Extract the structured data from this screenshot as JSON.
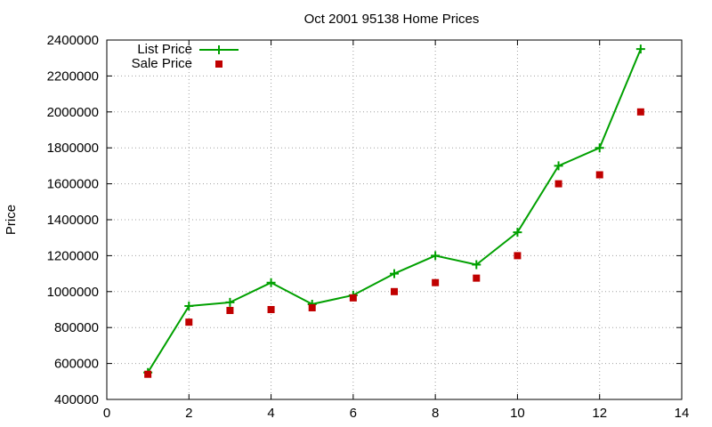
{
  "chart_data": {
    "type": "line",
    "title": "Oct 2001 95138 Home Prices",
    "xlabel": "",
    "ylabel": "Price",
    "xlim": [
      0,
      14
    ],
    "ylim": [
      400000,
      2400000
    ],
    "x_ticks": [
      0,
      2,
      4,
      6,
      8,
      10,
      12,
      14
    ],
    "y_ticks": [
      400000,
      600000,
      800000,
      1000000,
      1200000,
      1400000,
      1600000,
      1800000,
      2000000,
      2200000,
      2400000
    ],
    "x_tick_labels": [
      "0",
      "2",
      "4",
      "6",
      "8",
      "10",
      "12",
      "14"
    ],
    "y_tick_labels": [
      "400000",
      "600000",
      "800000",
      "1000000",
      "1200000",
      "1400000",
      "1600000",
      "1800000",
      "2000000",
      "2200000",
      "2400000"
    ],
    "grid": true,
    "legend_position": "top-left",
    "series": [
      {
        "name": "List Price",
        "style": "line-plus",
        "color": "#00a000",
        "x": [
          1,
          2,
          3,
          4,
          5,
          6,
          7,
          8,
          9,
          10,
          11,
          12,
          13
        ],
        "values": [
          550000,
          920000,
          940000,
          1050000,
          930000,
          980000,
          1100000,
          1200000,
          1150000,
          1330000,
          1700000,
          1800000,
          2350000
        ]
      },
      {
        "name": "Sale Price",
        "style": "square-markers",
        "color": "#c00000",
        "x": [
          1,
          2,
          3,
          4,
          5,
          6,
          7,
          8,
          9,
          10,
          11,
          12,
          13
        ],
        "values": [
          540000,
          830000,
          895000,
          900000,
          910000,
          965000,
          1000000,
          1050000,
          1075000,
          1200000,
          1600000,
          1650000,
          2000000
        ]
      }
    ]
  }
}
